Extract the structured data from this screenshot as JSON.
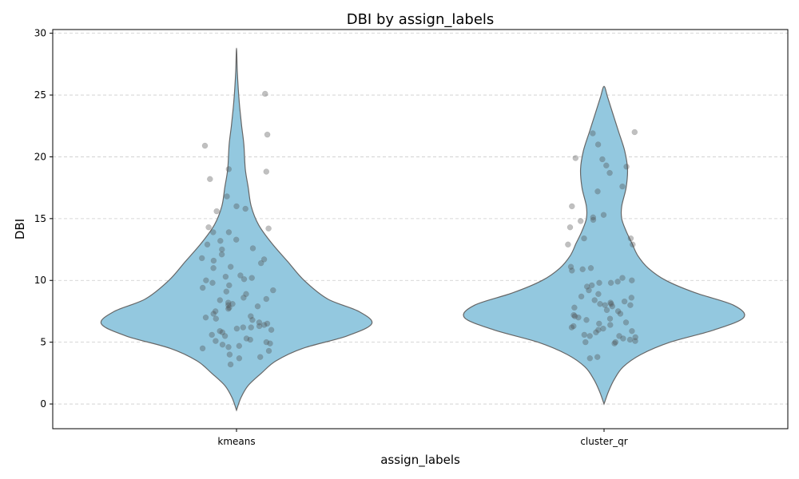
{
  "chart_data": {
    "type": "violin",
    "title": "DBI by assign_labels",
    "xlabel": "assign_labels",
    "ylabel": "DBI",
    "ylim": [
      -2,
      30.3
    ],
    "yticks": [
      0,
      5,
      10,
      15,
      20,
      25,
      30
    ],
    "grid": true,
    "colors": {
      "violin_fill": "#93c8df",
      "violin_edge": "#666666",
      "points": "#4a4a4a"
    },
    "categories": [
      "kmeans",
      "cluster_qr"
    ],
    "violins": [
      {
        "category": "kmeans",
        "extent": [
          -0.5,
          28.8
        ],
        "profile": [
          [
            -0.5,
            0.0
          ],
          [
            0.5,
            0.03
          ],
          [
            1.5,
            0.08
          ],
          [
            2.5,
            0.17
          ],
          [
            3.5,
            0.27
          ],
          [
            4.5,
            0.45
          ],
          [
            5.5,
            0.75
          ],
          [
            6.5,
            0.92
          ],
          [
            7.5,
            0.83
          ],
          [
            8.5,
            0.62
          ],
          [
            10.0,
            0.46
          ],
          [
            11.5,
            0.35
          ],
          [
            13.0,
            0.24
          ],
          [
            14.5,
            0.15
          ],
          [
            16.0,
            0.1
          ],
          [
            17.5,
            0.08
          ],
          [
            19.0,
            0.06
          ],
          [
            21.0,
            0.05
          ],
          [
            22.5,
            0.035
          ],
          [
            24.0,
            0.022
          ],
          [
            25.5,
            0.012
          ],
          [
            27.0,
            0.005
          ],
          [
            28.8,
            0.0
          ]
        ],
        "points": [
          25.1,
          21.8,
          20.9,
          19.0,
          18.8,
          18.2,
          16.8,
          16.0,
          15.8,
          15.6,
          14.3,
          14.2,
          13.9,
          13.9,
          13.3,
          13.2,
          12.9,
          12.6,
          12.5,
          12.1,
          11.8,
          11.7,
          11.6,
          11.4,
          11.1,
          11.0,
          10.4,
          10.3,
          10.2,
          10.1,
          10.0,
          9.8,
          9.6,
          9.4,
          9.2,
          9.1,
          8.9,
          8.6,
          8.5,
          8.4,
          8.2,
          8.1,
          8.0,
          7.9,
          7.8,
          7.7,
          7.5,
          7.3,
          7.1,
          7.0,
          6.9,
          6.8,
          6.6,
          6.5,
          6.4,
          6.3,
          6.2,
          6.2,
          6.1,
          6.0,
          5.9,
          5.8,
          5.6,
          5.5,
          5.3,
          5.2,
          5.1,
          5.0,
          4.9,
          4.8,
          4.7,
          4.6,
          4.5,
          4.3,
          4.0,
          3.8,
          3.7,
          3.2
        ]
      },
      {
        "category": "cluster_qr",
        "extent": [
          0.0,
          25.7
        ],
        "profile": [
          [
            0.0,
            0.0
          ],
          [
            1.0,
            0.03
          ],
          [
            2.0,
            0.07
          ],
          [
            3.0,
            0.13
          ],
          [
            4.0,
            0.25
          ],
          [
            5.0,
            0.45
          ],
          [
            6.0,
            0.75
          ],
          [
            7.0,
            0.95
          ],
          [
            8.0,
            0.88
          ],
          [
            9.0,
            0.62
          ],
          [
            10.0,
            0.42
          ],
          [
            11.0,
            0.3
          ],
          [
            12.0,
            0.23
          ],
          [
            13.0,
            0.19
          ],
          [
            14.0,
            0.15
          ],
          [
            15.0,
            0.12
          ],
          [
            16.0,
            0.12
          ],
          [
            17.5,
            0.15
          ],
          [
            19.0,
            0.16
          ],
          [
            20.5,
            0.14
          ],
          [
            22.0,
            0.1
          ],
          [
            23.5,
            0.06
          ],
          [
            24.8,
            0.025
          ],
          [
            25.7,
            0.0
          ]
        ],
        "points": [
          22.0,
          21.9,
          21.0,
          19.9,
          19.8,
          19.3,
          19.2,
          18.7,
          17.6,
          17.2,
          16.0,
          15.3,
          15.1,
          14.9,
          14.8,
          14.3,
          13.4,
          13.4,
          12.9,
          12.9,
          11.1,
          11.0,
          10.9,
          10.8,
          10.2,
          10.0,
          9.9,
          9.8,
          9.8,
          9.6,
          9.5,
          9.2,
          8.9,
          8.7,
          8.6,
          8.4,
          8.3,
          8.2,
          8.1,
          8.1,
          8.0,
          8.0,
          7.9,
          7.8,
          7.6,
          7.5,
          7.3,
          7.2,
          7.1,
          7.0,
          6.9,
          6.8,
          6.6,
          6.5,
          6.4,
          6.3,
          6.2,
          6.1,
          6.0,
          5.9,
          5.8,
          5.6,
          5.5,
          5.5,
          5.4,
          5.3,
          5.2,
          5.1,
          5.0,
          5.0,
          4.9,
          3.8,
          3.7
        ]
      }
    ]
  }
}
